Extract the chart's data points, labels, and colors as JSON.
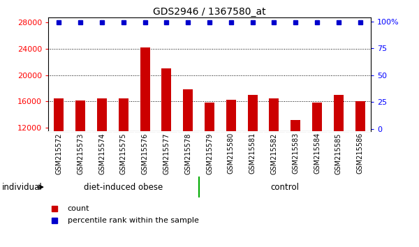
{
  "title": "GDS2946 / 1367580_at",
  "categories": [
    "GSM215572",
    "GSM215573",
    "GSM215574",
    "GSM215575",
    "GSM215576",
    "GSM215577",
    "GSM215578",
    "GSM215579",
    "GSM215580",
    "GSM215581",
    "GSM215582",
    "GSM215583",
    "GSM215584",
    "GSM215585",
    "GSM215586"
  ],
  "bar_values": [
    16400,
    16100,
    16400,
    16400,
    24200,
    21000,
    17800,
    15800,
    16200,
    17000,
    16500,
    13200,
    15800,
    17000,
    16000
  ],
  "percentile_values": [
    99,
    99,
    99,
    99,
    99,
    99,
    99,
    99,
    99,
    99,
    99,
    99,
    99,
    99,
    99
  ],
  "bar_color": "#cc0000",
  "percentile_color": "#0000cc",
  "ylim_left": [
    11500,
    28800
  ],
  "ylim_right": [
    -2,
    104
  ],
  "yticks_left": [
    12000,
    16000,
    20000,
    24000,
    28000
  ],
  "yticks_right": [
    0,
    25,
    50,
    75,
    100
  ],
  "grid_values": [
    16000,
    20000,
    24000
  ],
  "group_divider": 7,
  "group1_label": "diet-induced obese",
  "group2_label": "control",
  "legend_count_label": "count",
  "legend_percentile_label": "percentile rank within the sample",
  "individual_label": "individual",
  "background_color": "#ffffff",
  "plot_bg_color": "#ffffff",
  "tick_bg_color": "#d0d0d0",
  "group_bar_color": "#44ee44",
  "group_divider_color": "#00aa00"
}
